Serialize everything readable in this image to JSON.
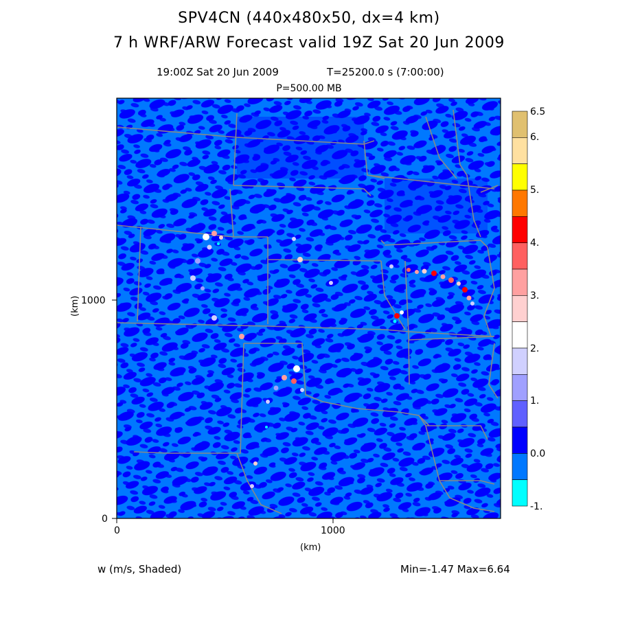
{
  "header": {
    "title": "SPV4CN (440x480x50, dx=4 km)",
    "subtitle": "7 h WRF/ARW Forecast valid 19Z Sat 20 Jun 2009",
    "valid_time": "19:00Z Sat 20 Jun 2009",
    "model_time": "T=25200.0 s (7:00:00)",
    "level": "P=500.00 MB"
  },
  "axes": {
    "x_label": "(km)",
    "y_label": "(km)",
    "x_ticks": [
      "0",
      "1000"
    ],
    "y_ticks": [
      "0",
      "1000"
    ]
  },
  "colorbar": {
    "labels": [
      "6.5",
      "6.",
      "5.",
      "4.",
      "3.",
      "2.",
      "1.",
      "0.0",
      "-1."
    ],
    "colors": [
      "#e0c070",
      "#ffe0a0",
      "#ffff00",
      "#ff7800",
      "#ff0000",
      "#ff6060",
      "#ffa0a0",
      "#ffd0d0",
      "#ffffff",
      "#d0d0ff",
      "#a0a0ff",
      "#6060ff",
      "#0000ff",
      "#0078ff",
      "#00ffff"
    ]
  },
  "footer": {
    "field": "w (m/s, Shaded)",
    "range": "Min=-1.47 Max=6.64"
  },
  "colors": {
    "background_field": "#0078ff",
    "updraft_field": "#0000ff",
    "borders": "#888888"
  }
}
